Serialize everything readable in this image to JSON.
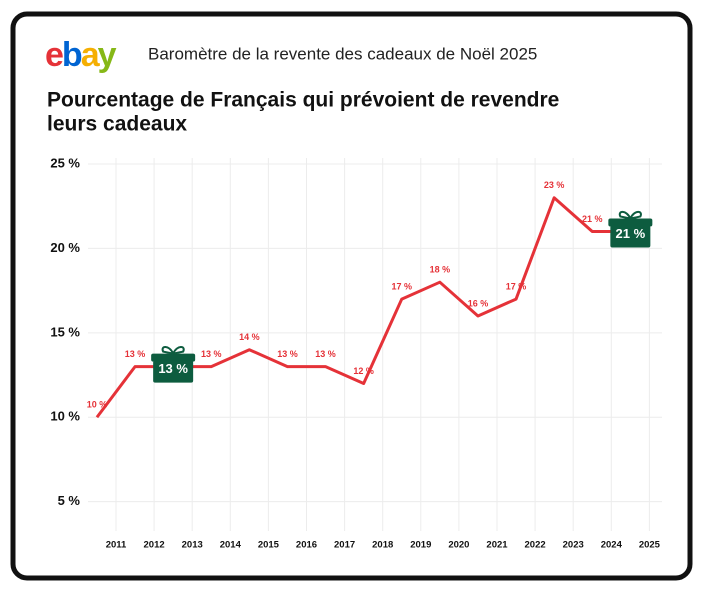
{
  "chart_data": {
    "type": "line",
    "logo": "ebay",
    "subtitle": "Baromètre de la revente des cadeaux de Noël 2025",
    "title": [
      "Pourcentage de Français qui prévoient de revendre",
      "leurs cadeaux"
    ],
    "categories": [
      "2011",
      "2012",
      "2013",
      "2014",
      "2015",
      "2016",
      "2017",
      "2018",
      "2019",
      "2020",
      "2021",
      "2022",
      "2023",
      "2024",
      "2025"
    ],
    "series": [
      {
        "color": "#e53238",
        "values": [
          10,
          13,
          13,
          13,
          14,
          13,
          13,
          12,
          17,
          18,
          16,
          17,
          23,
          21,
          21
        ],
        "value_labels": [
          "10 %",
          "13 %",
          "13 %",
          "13 %",
          "14 %",
          "13 %",
          "13 %",
          "12 %",
          "17 %",
          "18 %",
          "16 %",
          "17 %",
          "23 %",
          "21 %",
          "21 %"
        ]
      }
    ],
    "highlight_indices": [
      2,
      14
    ],
    "highlight_color": "#0d5c3f",
    "ylim": [
      3.5,
      25
    ],
    "yticks": [
      {
        "value": 5,
        "label": "5 %"
      },
      {
        "value": 10,
        "label": "10 %"
      },
      {
        "value": 15,
        "label": "15 %"
      },
      {
        "value": 20,
        "label": "20 %"
      },
      {
        "value": 25,
        "label": "25 %"
      }
    ],
    "grid": true
  }
}
